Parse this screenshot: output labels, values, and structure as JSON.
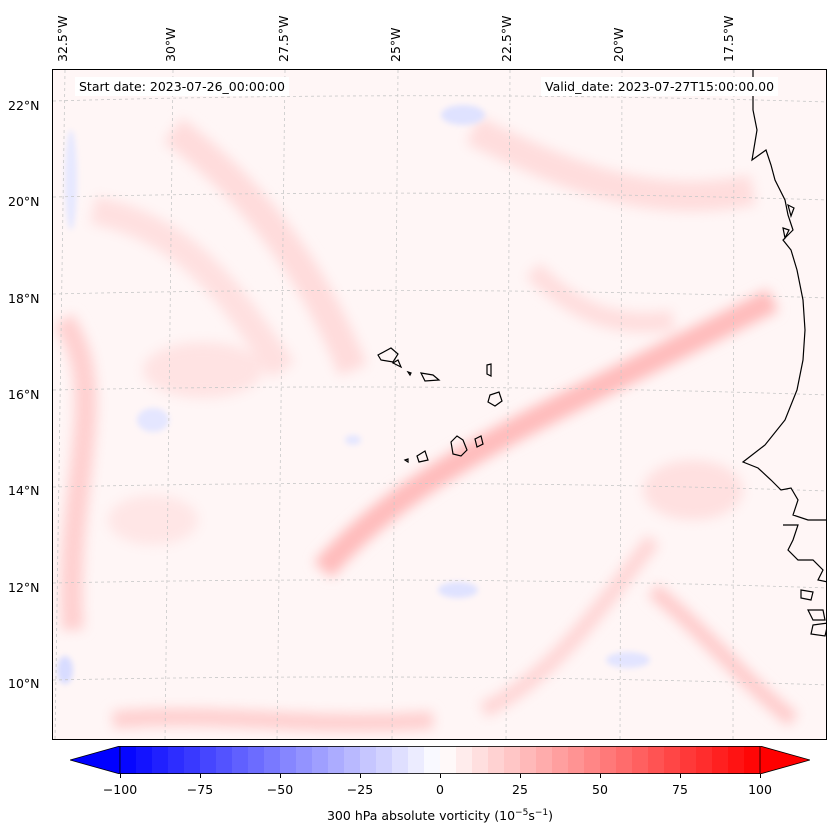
{
  "map": {
    "start_date": "Start date: 2023-07-26_00:00:00",
    "valid_date": "Valid_date: 2023-07-27T15:00:00.00",
    "longitude_labels": [
      "32.5°W",
      "30°W",
      "27.5°W",
      "25°W",
      "22.5°W",
      "20°W",
      "17.5°W"
    ],
    "latitude_labels": [
      "22°N",
      "20°N",
      "18°N",
      "16°N",
      "14°N",
      "12°N",
      "10°N"
    ],
    "field": "300 hPa absolute vorticity",
    "colors": {
      "negative": "#0000ff",
      "positive": "#ff0000",
      "neutral": "#ffffff",
      "coast": "#000000",
      "grid": "#c8c8c8"
    }
  },
  "colorbar": {
    "ticks": [
      "−100",
      "−75",
      "−50",
      "−25",
      "0",
      "25",
      "50",
      "75",
      "100"
    ],
    "label_prefix": "300 hPa absolute vorticity (10",
    "label_exp1": "−5",
    "label_mid": "s",
    "label_exp2": "−1",
    "label_suffix": ")",
    "range": [
      -100,
      100
    ],
    "step": 5
  }
}
